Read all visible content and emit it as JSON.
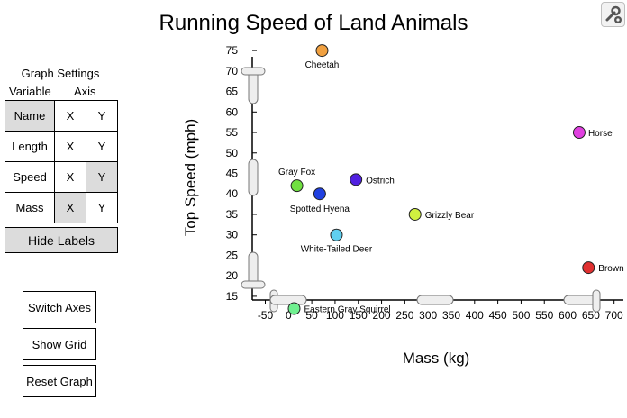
{
  "title": "Running Speed of Land Animals",
  "toolbar": {
    "settings_icon": "wrench-gear-icon"
  },
  "settings": {
    "title": "Graph Settings",
    "col_variable": "Variable",
    "col_axis": "Axis",
    "rows": [
      {
        "name": "Name",
        "x": "X",
        "y": "Y",
        "selected": "variable"
      },
      {
        "name": "Length",
        "x": "X",
        "y": "Y",
        "selected": "none"
      },
      {
        "name": "Speed",
        "x": "X",
        "y": "Y",
        "selected": "y"
      },
      {
        "name": "Mass",
        "x": "X",
        "y": "Y",
        "selected": "x"
      }
    ],
    "hide_labels": "Hide Labels"
  },
  "buttons": {
    "switch_axes": "Switch Axes",
    "show_grid": "Show Grid",
    "reset_graph": "Reset Graph"
  },
  "chart_data": {
    "type": "scatter",
    "title": "Running Speed of Land Animals",
    "xlabel": "Mass (kg)",
    "ylabel": "Top Speed (mph)",
    "xlim": [
      -80,
      720
    ],
    "ylim": [
      13,
      77
    ],
    "grid": false,
    "x_ticks": [
      -50,
      0,
      50,
      100,
      150,
      200,
      250,
      300,
      350,
      400,
      450,
      500,
      550,
      600,
      650,
      700
    ],
    "y_ticks": [
      15,
      20,
      25,
      30,
      35,
      40,
      45,
      50,
      55,
      60,
      65,
      70,
      75
    ],
    "points": [
      {
        "label": "Cheetah",
        "x": 72,
        "y": 75,
        "color": "#f0a040"
      },
      {
        "label": "Horse",
        "x": 625,
        "y": 55,
        "color": "#e040e0"
      },
      {
        "label": "Gray Fox",
        "x": 18,
        "y": 42,
        "color": "#70e040"
      },
      {
        "label": "Ostrich",
        "x": 145,
        "y": 43.5,
        "color": "#5020e0"
      },
      {
        "label": "Spotted Hyena",
        "x": 67,
        "y": 40,
        "color": "#2040e0"
      },
      {
        "label": "Grizzly Bear",
        "x": 272,
        "y": 35,
        "color": "#d0f040"
      },
      {
        "label": "White-Tailed Deer",
        "x": 103,
        "y": 30,
        "color": "#60d0f0"
      },
      {
        "label": "Brown Bear",
        "x": 645,
        "y": 22,
        "color": "#e03030"
      },
      {
        "label": "Eastern Gray Squirrel",
        "x": 12,
        "y": 12,
        "color": "#70f090"
      }
    ]
  }
}
